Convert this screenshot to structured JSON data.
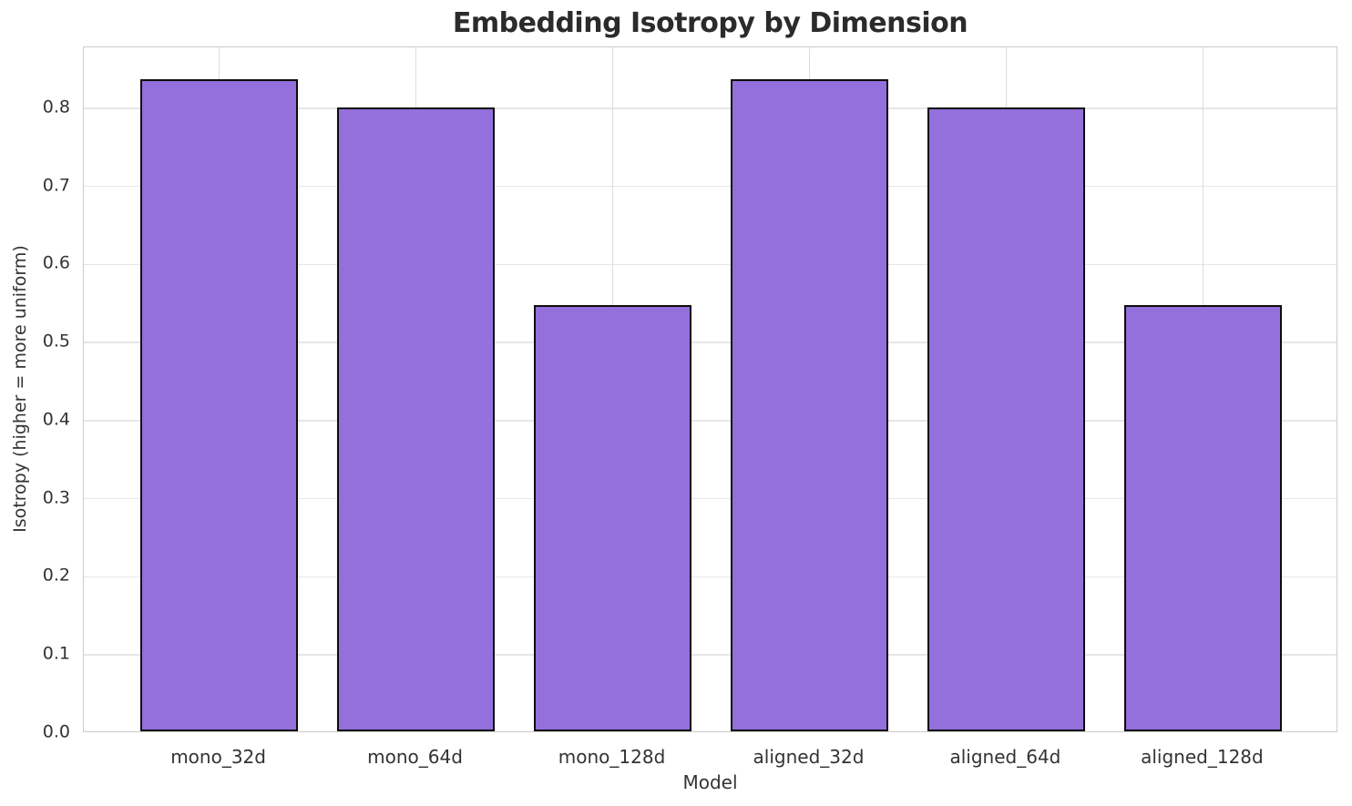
{
  "chart_data": {
    "type": "bar",
    "title": "Embedding Isotropy by Dimension",
    "xlabel": "Model",
    "ylabel": "Isotropy (higher = more uniform)",
    "categories": [
      "mono_32d",
      "mono_64d",
      "mono_128d",
      "aligned_32d",
      "aligned_64d",
      "aligned_128d"
    ],
    "values": [
      0.835,
      0.799,
      0.546,
      0.835,
      0.799,
      0.546
    ],
    "ylim": [
      0,
      0.878
    ],
    "yticks": [
      0.0,
      0.1,
      0.2,
      0.3,
      0.4,
      0.5,
      0.6,
      0.7,
      0.8
    ],
    "ytick_labels": [
      "0.0",
      "0.1",
      "0.2",
      "0.3",
      "0.4",
      "0.5",
      "0.6",
      "0.7",
      "0.8"
    ],
    "grid": true,
    "legend": null,
    "style": {
      "bar_color": "#9370db",
      "bar_edge_color": "#0d0d0d",
      "grid_color": "#e6e6e6",
      "spine_color": "#cccccc",
      "tick_text_color": "#333333",
      "title_color": "#2b2b2b",
      "background_color": "#ffffff"
    }
  }
}
